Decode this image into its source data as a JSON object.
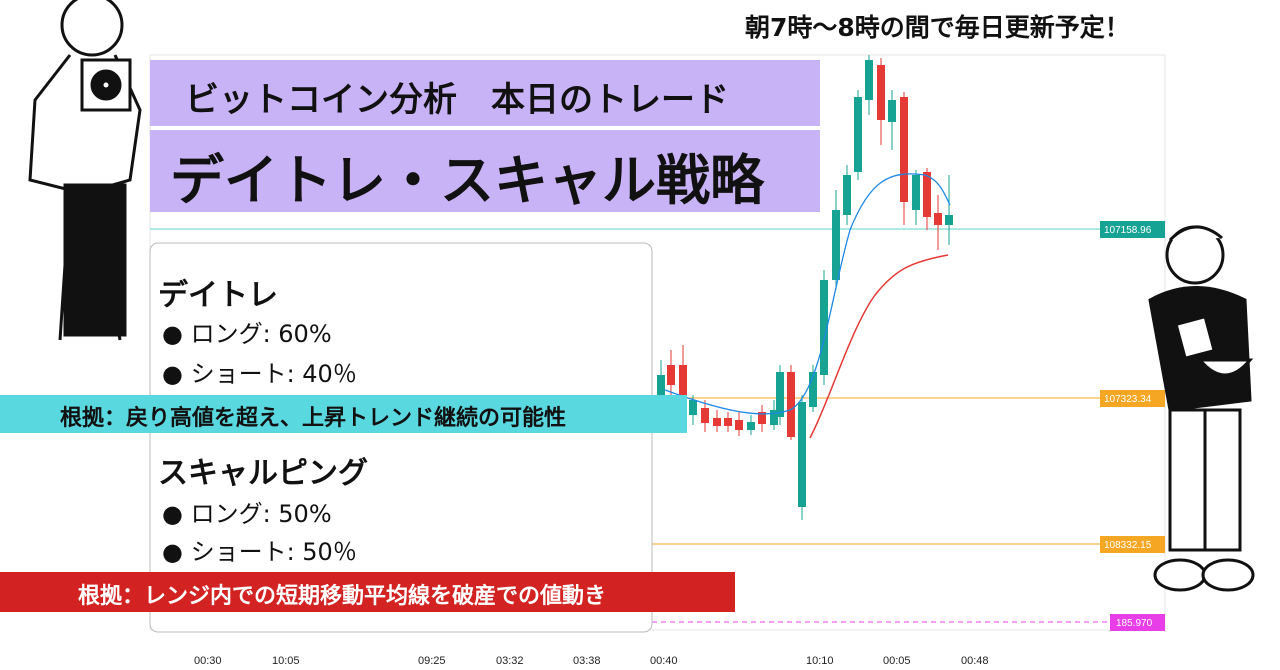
{
  "header": {
    "schedule": "朝7時〜8時の間で毎日更新予定！",
    "title_line1": "ビットコイン分析　本日のトレード",
    "title_line2": "デイトレ・スキャル戦略"
  },
  "panel": {
    "sections": [
      {
        "title": "デイトレ",
        "items": [
          "● ロング: 60%",
          "● ショート: 40％"
        ],
        "basis": "根拠：戻り高値を超え、上昇トレンド継続の可能性"
      },
      {
        "title": "スキャルピング",
        "items": [
          "● ロング: 50%",
          "● ショート: 50％"
        ],
        "basis": "根拠：レンジ内での短期移動平均線を破産での値動き"
      }
    ]
  },
  "chart": {
    "price_tags": [
      "107158.96",
      "107323.34",
      "108332.15",
      "185.970"
    ],
    "times": [
      "00:30",
      "10:05",
      "09:25",
      "03:32",
      "03:38",
      "00:40",
      "10:10",
      "00:05",
      "00:48"
    ]
  }
}
